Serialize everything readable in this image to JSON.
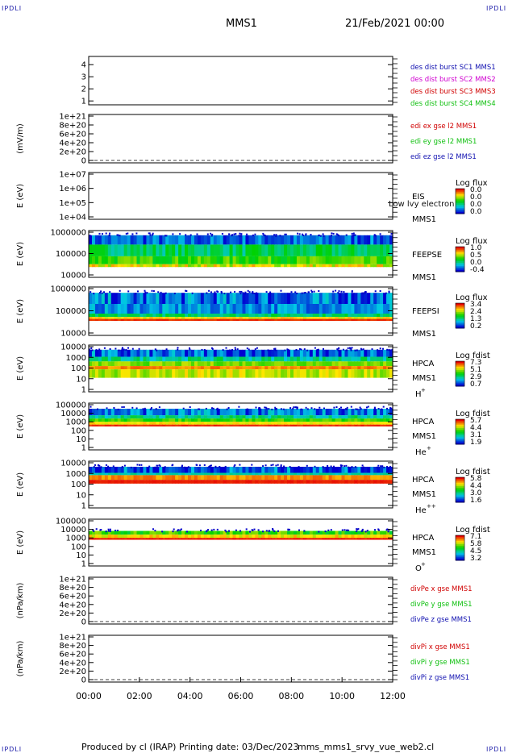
{
  "corner_mark": "IPDLI",
  "header": {
    "mission": "MMS1",
    "date": "21/Feb/2021 00:00"
  },
  "footer": {
    "produced_by": "Produced by cl (IRAP)",
    "printing_date": "Printing date: 03/Dec/2023",
    "script": "mms_mms1_srvy_vue_web2.cl"
  },
  "chart_data": {
    "type": "heatmap",
    "x_tick_labels": [
      "00:00",
      "02:00",
      "04:00",
      "06:00",
      "08:00",
      "10:00",
      "12:00"
    ],
    "xlim": [
      "00:00",
      "12:00"
    ],
    "panels": [
      {
        "id": "burst",
        "kind": "line",
        "ylabel": "",
        "y_ticks": [
          "1",
          "2",
          "3",
          "4"
        ],
        "right_labels": [
          {
            "text": "des dist burst SC1 MMS1",
            "color": "#1010b0"
          },
          {
            "text": "des dist burst SC2 MMS2",
            "color": "#d000d0"
          },
          {
            "text": "des dist burst SC3 MMS3",
            "color": "#d00000"
          },
          {
            "text": "des dist burst SC4 MMS4",
            "color": "#10c010"
          }
        ]
      },
      {
        "id": "edi",
        "kind": "line",
        "ylabel": "(mV/m)",
        "dashed_zero": true,
        "y_ticks": [
          "1e+21",
          "8e+20",
          "6e+20",
          "4e+20",
          "2e+20",
          "0"
        ],
        "right_labels": [
          {
            "text": "edi ex gse l2 MMS1",
            "color": "#d00000"
          },
          {
            "text": "edi ey gse l2 MMS1",
            "color": "#10c010"
          },
          {
            "text": "edi ez gse l2 MMS1",
            "color": "#1010b0"
          }
        ]
      },
      {
        "id": "eis",
        "kind": "spec",
        "ylabel": "E (eV)",
        "y_ticks": [
          "1e+07",
          "1e+06",
          "1e+05",
          "1e+04"
        ],
        "inst": [
          "EIS",
          "MMS1"
        ],
        "overlay": "Low  lvy electron to",
        "cb_title": "Log flux",
        "cb_ticks": [
          "0.0",
          "0.0",
          "0.0",
          "0.0"
        ]
      },
      {
        "id": "feepse",
        "kind": "spec",
        "ylabel": "E (eV)",
        "y_ticks": [
          "1000000",
          "100000",
          "10000"
        ],
        "inst": [
          "FEEPSE",
          "MMS1"
        ],
        "cb_title": "Log flux",
        "cb_ticks": [
          "1.0",
          "0.5",
          "0.0",
          "-0.4"
        ]
      },
      {
        "id": "feepsi",
        "kind": "spec",
        "ylabel": "E (eV)",
        "y_ticks": [
          "1000000",
          "100000",
          "10000"
        ],
        "inst": [
          "FEEPSI",
          "MMS1"
        ],
        "cb_title": "Log flux",
        "cb_ticks": [
          "3.4",
          "2.4",
          "1.3",
          "0.2"
        ]
      },
      {
        "id": "hpca_h",
        "kind": "spec",
        "ylabel": "E (eV)",
        "y_ticks": [
          "10000",
          "1000",
          "100",
          "10",
          "1"
        ],
        "inst": [
          "HPCA",
          "MMS1"
        ],
        "species": "H",
        "charge": "+",
        "cb_title": "Log fdist",
        "cb_ticks": [
          "7.3",
          "5.1",
          "2.9",
          "0.7"
        ]
      },
      {
        "id": "hpca_he",
        "kind": "spec",
        "ylabel": "E (eV)",
        "y_ticks": [
          "100000",
          "10000",
          "1000",
          "100",
          "10",
          "1"
        ],
        "inst": [
          "HPCA",
          "MMS1"
        ],
        "species": "He",
        "charge": "+",
        "cb_title": "Log fdist",
        "cb_ticks": [
          "5.7",
          "4.4",
          "3.1",
          "1.9"
        ]
      },
      {
        "id": "hpca_hepp",
        "kind": "spec",
        "ylabel": "E (eV)",
        "y_ticks": [
          "10000",
          "1000",
          "100",
          "10",
          "1"
        ],
        "inst": [
          "HPCA",
          "MMS1"
        ],
        "species": "He",
        "charge": "++",
        "cb_title": "Log fdist",
        "cb_ticks": [
          "5.8",
          "4.4",
          "3.0",
          "1.6"
        ]
      },
      {
        "id": "hpca_o",
        "kind": "spec",
        "ylabel": "E (eV)",
        "y_ticks": [
          "100000",
          "10000",
          "1000",
          "100",
          "10",
          "1"
        ],
        "inst": [
          "HPCA",
          "MMS1"
        ],
        "species": "O",
        "charge": "+",
        "cb_title": "Log fdist",
        "cb_ticks": [
          "7.1",
          "5.8",
          "4.5",
          "3.2"
        ]
      },
      {
        "id": "divpe",
        "kind": "line",
        "ylabel": "(nPa/km)",
        "dashed_zero": true,
        "y_ticks": [
          "1e+21",
          "8e+20",
          "6e+20",
          "4e+20",
          "2e+20",
          "0"
        ],
        "right_labels": [
          {
            "text": "divPe x gse MMS1",
            "color": "#d00000"
          },
          {
            "text": "divPe y gse MMS1",
            "color": "#10c010"
          },
          {
            "text": "divPe z gse MMS1",
            "color": "#1010b0"
          }
        ]
      },
      {
        "id": "divpi",
        "kind": "line",
        "ylabel": "(nPa/km)",
        "dashed_zero": true,
        "y_ticks": [
          "1e+21",
          "8e+20",
          "6e+20",
          "4e+20",
          "2e+20",
          "0"
        ],
        "right_labels": [
          {
            "text": "divPi x gse MMS1",
            "color": "#d00000"
          },
          {
            "text": "divPi y gse MMS1",
            "color": "#10c010"
          },
          {
            "text": "divPi z gse MMS1",
            "color": "#1010b0"
          }
        ]
      }
    ]
  }
}
